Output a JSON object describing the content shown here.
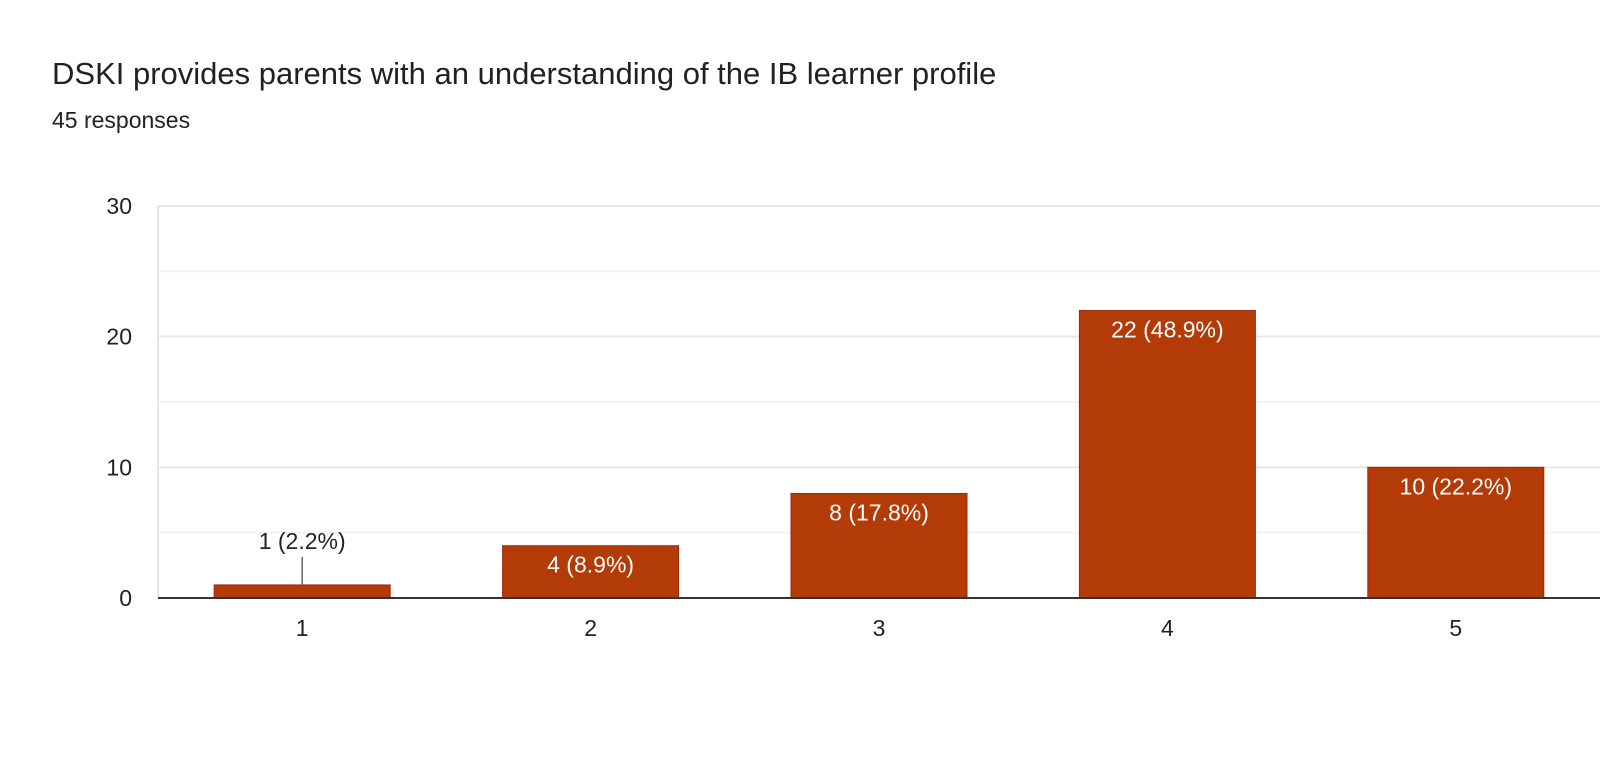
{
  "header": {
    "title": "DSKI provides parents with an understanding of the IB learner profile",
    "subtitle": "45 responses"
  },
  "colors": {
    "bar": "#b33b07",
    "grid_major": "#e6e6e6",
    "grid_minor": "#f2f2f2",
    "axis": "#333333"
  },
  "chart_data": {
    "type": "bar",
    "title": "DSKI provides parents with an understanding of the IB learner profile",
    "subtitle": "45 responses",
    "categories": [
      "1",
      "2",
      "3",
      "4",
      "5"
    ],
    "values": [
      1,
      4,
      8,
      22,
      10
    ],
    "data_labels": [
      "1 (2.2%)",
      "4 (8.9%)",
      "8 (17.8%)",
      "22 (48.9%)",
      "10 (22.2%)"
    ],
    "xlabel": "",
    "ylabel": "",
    "ylim": [
      0,
      30
    ],
    "y_ticks": [
      "0",
      "10",
      "20",
      "30"
    ],
    "grid": true,
    "legend": "none"
  }
}
